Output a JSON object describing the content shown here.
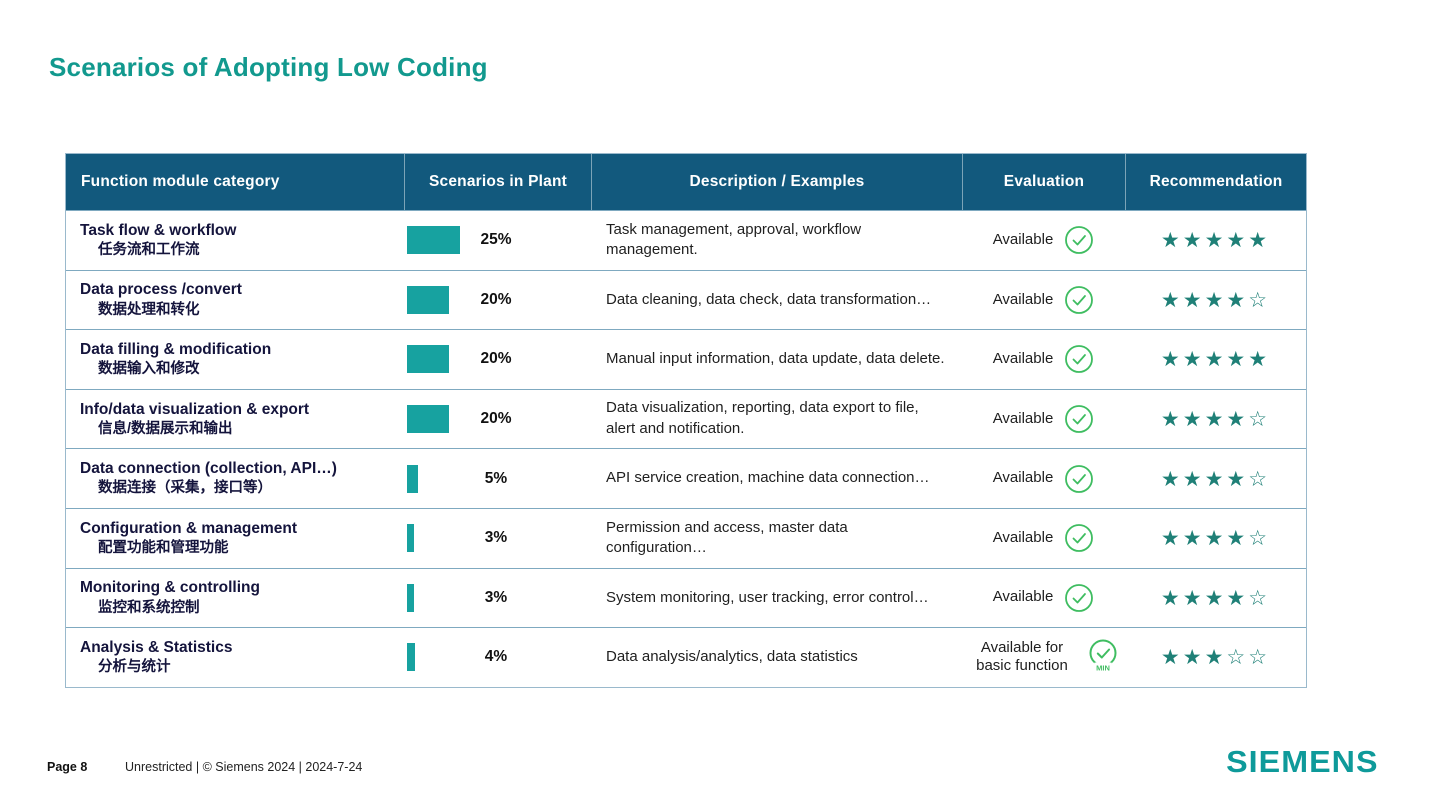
{
  "theme": {
    "accent": "#12998e",
    "header_bg": "#12597d",
    "bar_color": "#17a2a0",
    "star_color": "#1f8077",
    "check_color": "#3fbd61",
    "logo_color": "#0e9a9a",
    "row_border": "#7fa9c0",
    "table_border": "#9ab9cc",
    "category_text": "#14143c",
    "body_text": "#1f1f1f"
  },
  "slide": {
    "title": "Scenarios of Adopting Low Coding"
  },
  "table": {
    "columns": [
      "Function module category",
      "Scenarios in Plant",
      "Description / Examples",
      "Evaluation",
      "Recommendation"
    ],
    "rows": [
      {
        "category_en": "Task flow & workflow",
        "category_zh": "任务流和工作流",
        "percent": 25,
        "percent_label": "25%",
        "description": "Task management, approval, workflow management.",
        "evaluation": "Available",
        "evaluation_icon": "check-circle",
        "stars_filled": 5,
        "stars_total": 5
      },
      {
        "category_en": "Data process /convert",
        "category_zh": "数据处理和转化",
        "percent": 20,
        "percent_label": "20%",
        "description": "Data cleaning, data check, data transformation…",
        "evaluation": "Available",
        "evaluation_icon": "check-circle",
        "stars_filled": 4,
        "stars_total": 5
      },
      {
        "category_en": "Data filling & modification",
        "category_zh": "数据输入和修改",
        "percent": 20,
        "percent_label": "20%",
        "description": "Manual input information, data update, data delete.",
        "evaluation": "Available",
        "evaluation_icon": "check-circle",
        "stars_filled": 5,
        "stars_total": 5
      },
      {
        "category_en": "Info/data visualization & export",
        "category_zh": "信息/数据展示和输出",
        "percent": 20,
        "percent_label": "20%",
        "description": "Data visualization, reporting, data export to file, alert and notification.",
        "evaluation": "Available",
        "evaluation_icon": "check-circle",
        "stars_filled": 4,
        "stars_total": 5
      },
      {
        "category_en": "Data connection (collection, API…)",
        "category_zh": "数据连接（采集，接口等）",
        "percent": 5,
        "percent_label": "5%",
        "description": "API service creation, machine data connection…",
        "evaluation": "Available",
        "evaluation_icon": "check-circle",
        "stars_filled": 4,
        "stars_total": 5
      },
      {
        "category_en": "Configuration & management",
        "category_zh": "配置功能和管理功能",
        "percent": 3,
        "percent_label": "3%",
        "description": "Permission and access, master data configuration…",
        "evaluation": "Available",
        "evaluation_icon": "check-circle",
        "stars_filled": 4,
        "stars_total": 5
      },
      {
        "category_en": "Monitoring & controlling",
        "category_zh": "监控和系统控制",
        "percent": 3,
        "percent_label": "3%",
        "description": "System monitoring, user tracking, error control…",
        "evaluation": "Available",
        "evaluation_icon": "check-circle",
        "stars_filled": 4,
        "stars_total": 5
      },
      {
        "category_en": "Analysis & Statistics",
        "category_zh": "分析与统计",
        "percent": 4,
        "percent_label": "4%",
        "description": "Data analysis/analytics, data statistics",
        "evaluation": "Available for basic function",
        "evaluation_icon": "check-circle-min",
        "stars_filled": 3,
        "stars_total": 5
      }
    ]
  },
  "footer": {
    "page_label": "Page 8",
    "meta": "Unrestricted | © Siemens 2024 | 2024-7-24",
    "logo": "SIEMENS"
  }
}
